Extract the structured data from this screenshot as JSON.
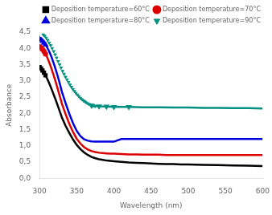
{
  "chart_data": {
    "type": "line",
    "xlabel": "Wavelength (nm)",
    "ylabel": "Absorbance",
    "xlim": [
      300,
      600
    ],
    "ylim": [
      0.0,
      4.5
    ],
    "xticks": [
      300,
      350,
      400,
      450,
      500,
      550,
      600
    ],
    "yticks": [
      {
        "value": 0.0,
        "label": "0,0"
      },
      {
        "value": 0.5,
        "label": "0,5"
      },
      {
        "value": 1.0,
        "label": "1,0"
      },
      {
        "value": 1.5,
        "label": "1,5"
      },
      {
        "value": 2.0,
        "label": "2,0"
      },
      {
        "value": 2.5,
        "label": "2,5"
      },
      {
        "value": 3.0,
        "label": "3,0"
      },
      {
        "value": 3.5,
        "label": "3,5"
      },
      {
        "value": 4.0,
        "label": "4,0"
      },
      {
        "value": 4.5,
        "label": "4,5"
      }
    ],
    "grid": false,
    "legend": "upper right",
    "series": [
      {
        "name": "Deposition temperature=60°C",
        "type": "line",
        "color": "#000000",
        "marker": "square",
        "x": [
          300,
          302,
          304,
          306,
          308,
          310,
          312,
          314,
          316,
          318,
          320,
          322,
          324,
          326,
          328,
          330,
          335,
          340,
          345,
          350,
          355,
          360,
          365,
          370,
          375,
          380,
          385,
          390,
          395,
          400,
          410,
          420,
          430,
          440,
          450,
          460,
          470,
          480,
          490,
          500,
          520,
          540,
          560,
          580,
          600
        ],
        "values": [
          3.42,
          3.38,
          3.32,
          3.25,
          3.17,
          3.08,
          2.98,
          2.87,
          2.76,
          2.64,
          2.52,
          2.4,
          2.27,
          2.14,
          2.01,
          1.88,
          1.62,
          1.4,
          1.2,
          1.03,
          0.9,
          0.8,
          0.72,
          0.66,
          0.62,
          0.59,
          0.57,
          0.55,
          0.54,
          0.53,
          0.51,
          0.49,
          0.48,
          0.47,
          0.46,
          0.45,
          0.44,
          0.44,
          0.43,
          0.43,
          0.42,
          0.41,
          0.4,
          0.39,
          0.38
        ]
      },
      {
        "name": "Deposition temperature=70°C",
        "type": "line",
        "color": "#dd0000",
        "marker": "circle",
        "x": [
          300,
          302,
          304,
          306,
          308,
          310,
          312,
          314,
          316,
          318,
          320,
          322,
          324,
          326,
          328,
          330,
          335,
          340,
          345,
          350,
          355,
          360,
          365,
          370,
          375,
          380,
          385,
          390,
          395,
          400,
          410,
          420,
          430,
          440,
          450,
          460,
          470,
          480,
          490,
          500,
          520,
          540,
          560,
          580,
          600
        ],
        "values": [
          4.05,
          4.02,
          3.97,
          3.91,
          3.83,
          3.74,
          3.63,
          3.51,
          3.38,
          3.24,
          3.1,
          2.95,
          2.79,
          2.63,
          2.47,
          2.3,
          1.98,
          1.68,
          1.43,
          1.22,
          1.07,
          0.96,
          0.89,
          0.84,
          0.81,
          0.79,
          0.78,
          0.77,
          0.76,
          0.76,
          0.75,
          0.74,
          0.74,
          0.73,
          0.73,
          0.73,
          0.72,
          0.72,
          0.72,
          0.72,
          0.72,
          0.72,
          0.72,
          0.72,
          0.72
        ]
      },
      {
        "name": "Deposition temperature=80°C",
        "type": "line",
        "color": "#0000dd",
        "marker": "triangle",
        "x": [
          300,
          302,
          304,
          306,
          308,
          310,
          312,
          314,
          316,
          318,
          320,
          322,
          324,
          326,
          328,
          330,
          335,
          340,
          345,
          350,
          355,
          360,
          365,
          370,
          375,
          380,
          385,
          390,
          395,
          400,
          410,
          420,
          430,
          440,
          450,
          460,
          470,
          480,
          490,
          500,
          520,
          540,
          560,
          580,
          600
        ],
        "values": [
          4.28,
          4.26,
          4.22,
          4.17,
          4.11,
          4.04,
          3.95,
          3.85,
          3.74,
          3.61,
          3.48,
          3.33,
          3.18,
          3.02,
          2.85,
          2.67,
          2.32,
          1.99,
          1.7,
          1.46,
          1.3,
          1.2,
          1.16,
          1.14,
          1.13,
          1.13,
          1.13,
          1.13,
          1.13,
          1.13,
          1.21,
          1.21,
          1.21,
          1.21,
          1.21,
          1.21,
          1.21,
          1.21,
          1.21,
          1.21,
          1.21,
          1.21,
          1.21,
          1.21,
          1.21
        ]
      },
      {
        "name": "Deposition temperature=90°C",
        "type": "scatter",
        "color": "#009080",
        "marker": "triangle_down",
        "x": [
          305,
          307,
          309,
          311,
          313,
          315,
          317,
          319,
          321,
          323,
          325,
          327,
          329,
          331,
          333,
          335,
          337,
          339,
          341,
          343,
          345,
          347,
          349,
          351,
          353,
          355,
          357,
          359,
          361,
          363,
          365,
          367,
          369,
          371,
          373,
          375
        ],
        "values": [
          4.42,
          4.38,
          4.32,
          4.25,
          4.17,
          4.09,
          4.0,
          3.91,
          3.81,
          3.71,
          3.6,
          3.5,
          3.4,
          3.3,
          3.21,
          3.12,
          3.04,
          2.96,
          2.88,
          2.81,
          2.74,
          2.68,
          2.62,
          2.57,
          2.52,
          2.47,
          2.43,
          2.39,
          2.36,
          2.33,
          2.3,
          2.28,
          2.26,
          2.24,
          2.23,
          2.22
        ]
      },
      {
        "name": "Deposition temperature=90°C",
        "type": "line",
        "color": "#009080",
        "marker": "triangle_down",
        "x": [
          370,
          380,
          390,
          400,
          420,
          440,
          460,
          480,
          500,
          520,
          540,
          560,
          580,
          600
        ],
        "values": [
          2.24,
          2.22,
          2.21,
          2.2,
          2.2,
          2.19,
          2.19,
          2.18,
          2.18,
          2.17,
          2.17,
          2.16,
          2.16,
          2.15
        ]
      }
    ]
  }
}
